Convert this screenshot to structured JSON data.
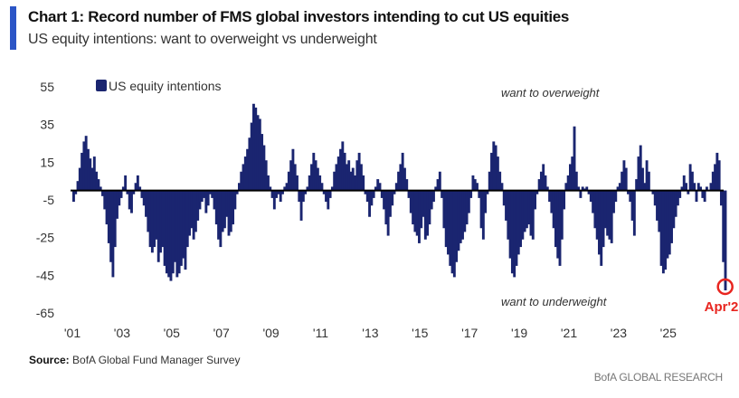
{
  "header": {
    "title": "Chart 1: Record number of FMS global investors intending to cut US equities",
    "subtitle": "US equity intentions: want to overweight vs underweight"
  },
  "footer": {
    "source_label": "Source:",
    "source_text": "BofA Global Fund Manager Survey",
    "brand": "BofA GLOBAL RESEARCH"
  },
  "colors": {
    "bar": "#1a2570",
    "accent": "#2b55c6",
    "highlight": "#e8251f"
  },
  "chart_data": {
    "type": "bar",
    "title": "US equity intentions: want to overweight vs underweight",
    "xlabel": "",
    "ylabel": "",
    "legend": {
      "label": "US equity intentions",
      "position": "top-left"
    },
    "ylim": [
      -65,
      55
    ],
    "yticks": [
      55,
      35,
      15,
      -5,
      -25,
      -45,
      -65
    ],
    "xlim": [
      "2001-01",
      "2026-12"
    ],
    "xticks": [
      "'01",
      "'03",
      "'05",
      "'07",
      "'09",
      "'11",
      "'13",
      "'15",
      "'17",
      "'19",
      "'21",
      "'23",
      "'25"
    ],
    "grid": false,
    "annotations": [
      {
        "text": "want to overweight",
        "position": "upper-right"
      },
      {
        "text": "want to underweight",
        "position": "lower-right"
      },
      {
        "text": "Apr'25",
        "highlight": true,
        "x": "2025-04",
        "y": -53
      }
    ],
    "start": "2001-01",
    "frequency": "monthly",
    "series": [
      {
        "name": "US equity intentions",
        "values": [
          -6,
          -2,
          5,
          12,
          20,
          26,
          29,
          22,
          17,
          12,
          18,
          10,
          6,
          2,
          -3,
          -10,
          -18,
          -28,
          -38,
          -46,
          -30,
          -15,
          -8,
          -4,
          2,
          8,
          -2,
          -10,
          -12,
          -2,
          4,
          8,
          2,
          -4,
          -8,
          -14,
          -22,
          -30,
          -33,
          -30,
          -26,
          -38,
          -33,
          -30,
          -40,
          -44,
          -46,
          -48,
          -44,
          -38,
          -46,
          -44,
          -40,
          -36,
          -42,
          -30,
          -24,
          -20,
          -26,
          -22,
          -16,
          -10,
          -6,
          -4,
          -12,
          -8,
          -2,
          -4,
          -10,
          -18,
          -26,
          -30,
          -22,
          -20,
          -14,
          -24,
          -22,
          -18,
          -10,
          -2,
          4,
          10,
          14,
          18,
          22,
          28,
          36,
          46,
          44,
          40,
          38,
          30,
          24,
          16,
          8,
          2,
          -4,
          -10,
          -4,
          -2,
          -6,
          -2,
          2,
          4,
          10,
          16,
          22,
          14,
          8,
          -6,
          -16,
          -6,
          -2,
          2,
          8,
          14,
          20,
          16,
          12,
          8,
          4,
          -2,
          -6,
          -10,
          -4,
          2,
          10,
          14,
          18,
          22,
          26,
          20,
          14,
          16,
          10,
          12,
          8,
          16,
          20,
          14,
          8,
          -2,
          -6,
          -14,
          -8,
          -4,
          2,
          6,
          4,
          -4,
          -10,
          -18,
          -24,
          -14,
          -8,
          -2,
          4,
          10,
          14,
          20,
          12,
          6,
          -4,
          -12,
          -18,
          -22,
          -24,
          -28,
          -20,
          -14,
          -26,
          -24,
          -18,
          -10,
          -6,
          2,
          6,
          10,
          -4,
          -20,
          -30,
          -34,
          -40,
          -44,
          -46,
          -38,
          -32,
          -28,
          -26,
          -22,
          -18,
          -12,
          -4,
          8,
          6,
          4,
          -4,
          -20,
          -26,
          -12,
          -2,
          10,
          20,
          26,
          24,
          18,
          10,
          4,
          -8,
          -16,
          -26,
          -36,
          -44,
          -46,
          -40,
          -34,
          -30,
          -26,
          -22,
          -20,
          -18,
          -24,
          -26,
          -10,
          -2,
          6,
          10,
          14,
          8,
          2,
          -6,
          -12,
          -20,
          -30,
          -36,
          -40,
          -26,
          -10,
          4,
          8,
          14,
          18,
          34,
          10,
          2,
          -4,
          2,
          1,
          2,
          -2,
          -6,
          -12,
          -20,
          -26,
          -34,
          -40,
          -30,
          -20,
          -24,
          -26,
          -28,
          -12,
          -6,
          2,
          4,
          10,
          16,
          12,
          -2,
          -6,
          -16,
          -24,
          6,
          18,
          24,
          12,
          4,
          16,
          10,
          0,
          -2,
          -8,
          -16,
          -22,
          -40,
          -44,
          -42,
          -36,
          -34,
          -28,
          -20,
          -14,
          -8,
          -4,
          2,
          8,
          4,
          -2,
          14,
          10,
          4,
          -6,
          4,
          2,
          -4,
          -6,
          2,
          0,
          4,
          10,
          14,
          20,
          16,
          -8,
          -38,
          -53
        ]
      }
    ]
  }
}
